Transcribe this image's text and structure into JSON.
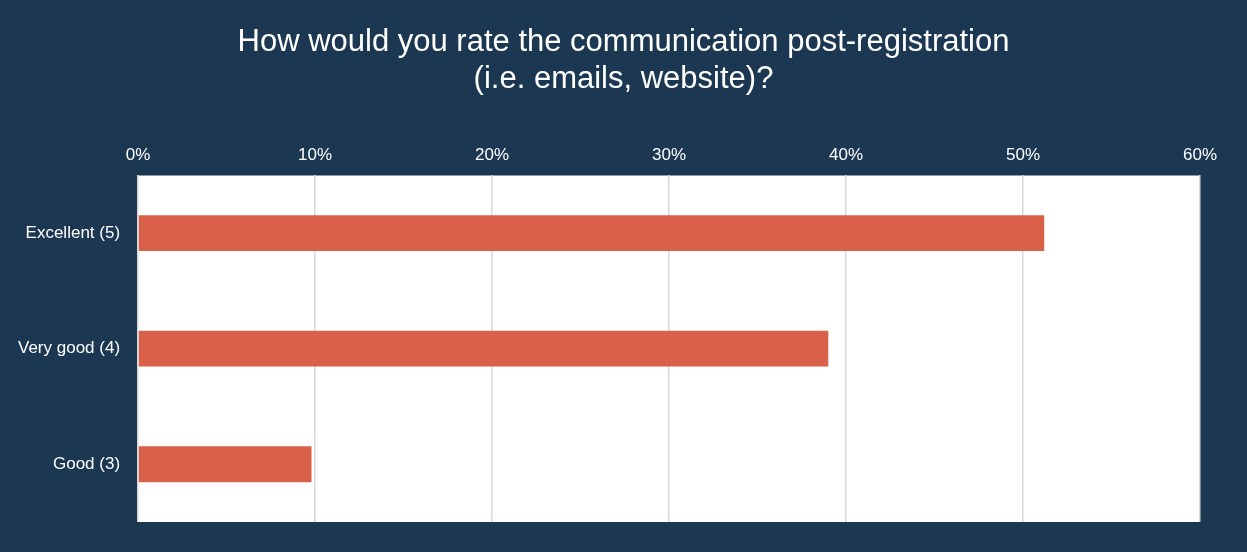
{
  "chart_data": {
    "type": "bar",
    "orientation": "horizontal",
    "title": "How would you rate the communication post-registration (i.e. emails, website)?",
    "categories": [
      "Excellent (5)",
      "Very good (4)",
      "Good (3)"
    ],
    "values": [
      51.2,
      39,
      9.8
    ],
    "color": "#d9614a",
    "xlim": [
      0,
      60
    ],
    "xticks": [
      {
        "value": 0,
        "label": "0%"
      },
      {
        "value": 10,
        "label": "10%"
      },
      {
        "value": 20,
        "label": "20%"
      },
      {
        "value": 30,
        "label": "30%"
      },
      {
        "value": 40,
        "label": "40%"
      },
      {
        "value": 50,
        "label": "50%"
      },
      {
        "value": 60,
        "label": "60%"
      }
    ],
    "grid": "x",
    "legend": false
  }
}
